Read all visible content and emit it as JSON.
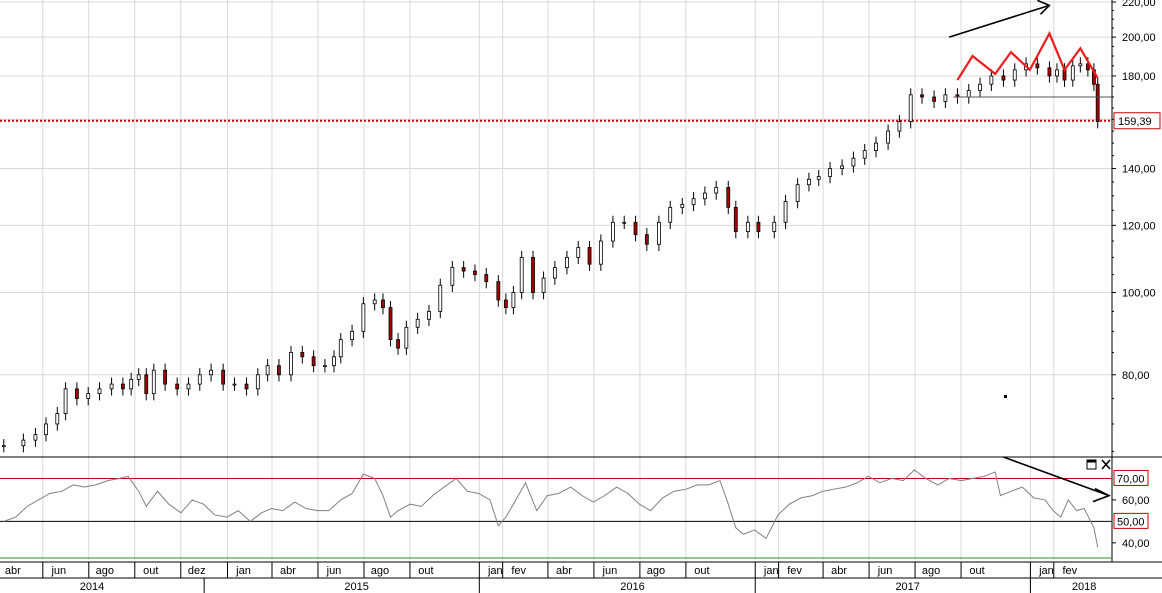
{
  "panel_controls": {
    "maximize_icon": "maximize-icon",
    "close_icon": "close-icon"
  },
  "colors": {
    "up": "#ffffff",
    "down": "#aa0000",
    "wick": "#000000",
    "support_line": "#cc0000",
    "rsi_line": "#808080",
    "rsi_upper": "#cc0000",
    "rsi_mid": "#000000",
    "rsi_lower": "#2e8b2e",
    "pattern": "#ee1c1c",
    "arrow": "#000000",
    "grid": "#d8d8d8"
  },
  "chart_data": [
    {
      "type": "candlestick",
      "scale": "log",
      "ylim": [
        64,
        220
      ],
      "yticks": [
        "80,00",
        "100,00",
        "120,00",
        "140,00",
        "160,00",
        "180,00",
        "200,00",
        "220,00"
      ],
      "ytick_values": [
        80,
        100,
        120,
        140,
        160,
        180,
        200,
        220
      ],
      "last_price_label": "159,39",
      "support_level": 159.39,
      "neckline": {
        "from": "2017-09-01",
        "to": "2018-03-15",
        "value": 170
      },
      "x_start": "2014-03-15",
      "x_end": "2018-03-29",
      "month_labels": [
        "abr",
        "jun",
        "ago",
        "out",
        "dez",
        "jan",
        "abr",
        "jun",
        "ago",
        "out",
        "jan",
        "fev",
        "abr",
        "jun",
        "ago",
        "out",
        "jan",
        "fev",
        "abr",
        "jun",
        "ago",
        "out",
        "jan",
        "fev"
      ],
      "month_label_dates": [
        "2014-04-01",
        "2014-06-01",
        "2014-08-01",
        "2014-10-01",
        "2014-12-01",
        "2015-02-01",
        "2015-04-01",
        "2015-06-01",
        "2015-08-01",
        "2015-10-01",
        "2016-01-01",
        "2016-02-01",
        "2016-04-01",
        "2016-06-01",
        "2016-08-01",
        "2016-10-01",
        "2017-01-01",
        "2017-02-01",
        "2017-04-01",
        "2017-06-01",
        "2017-08-01",
        "2017-10-01",
        "2018-01-01",
        "2018-02-01"
      ],
      "year_labels": [
        "2014",
        "2015",
        "2016",
        "2017",
        "2018"
      ],
      "year_label_dates": [
        "2014-07-15",
        "2015-07-01",
        "2016-07-01",
        "2017-07-01",
        "2018-02-20"
      ],
      "weekly_close": [
        [
          "2014-03-20",
          66
        ],
        [
          "2014-04-15",
          67
        ],
        [
          "2014-05-01",
          68
        ],
        [
          "2014-05-15",
          70
        ],
        [
          "2014-05-30",
          72
        ],
        [
          "2014-06-10",
          77
        ],
        [
          "2014-06-25",
          75
        ],
        [
          "2014-07-10",
          76
        ],
        [
          "2014-07-25",
          77
        ],
        [
          "2014-08-10",
          78
        ],
        [
          "2014-08-25",
          77
        ],
        [
          "2014-09-05",
          79
        ],
        [
          "2014-09-15",
          80
        ],
        [
          "2014-09-25",
          76
        ],
        [
          "2014-10-05",
          81
        ],
        [
          "2014-10-20",
          78
        ],
        [
          "2014-11-05",
          77
        ],
        [
          "2014-11-20",
          78
        ],
        [
          "2014-12-05",
          80
        ],
        [
          "2014-12-20",
          81
        ],
        [
          "2015-01-05",
          78
        ],
        [
          "2015-01-20",
          78
        ],
        [
          "2015-02-05",
          77
        ],
        [
          "2015-02-20",
          80
        ],
        [
          "2015-03-05",
          82
        ],
        [
          "2015-03-20",
          80
        ],
        [
          "2015-04-05",
          85
        ],
        [
          "2015-04-20",
          84
        ],
        [
          "2015-05-05",
          82
        ],
        [
          "2015-05-20",
          82
        ],
        [
          "2015-06-01",
          84
        ],
        [
          "2015-06-10",
          88
        ],
        [
          "2015-06-25",
          90
        ],
        [
          "2015-07-10",
          97
        ],
        [
          "2015-07-25",
          98
        ],
        [
          "2015-08-05",
          96
        ],
        [
          "2015-08-15",
          88
        ],
        [
          "2015-08-25",
          86
        ],
        [
          "2015-09-05",
          91
        ],
        [
          "2015-09-20",
          93
        ],
        [
          "2015-10-05",
          95
        ],
        [
          "2015-10-20",
          102
        ],
        [
          "2015-11-05",
          107
        ],
        [
          "2015-11-20",
          106
        ],
        [
          "2015-12-05",
          105
        ],
        [
          "2015-12-20",
          103
        ],
        [
          "2016-01-05",
          98
        ],
        [
          "2016-01-15",
          96
        ],
        [
          "2016-01-25",
          100
        ],
        [
          "2016-02-05",
          110
        ],
        [
          "2016-02-20",
          100
        ],
        [
          "2016-03-05",
          104
        ],
        [
          "2016-03-20",
          107
        ],
        [
          "2016-04-05",
          110
        ],
        [
          "2016-04-20",
          113
        ],
        [
          "2016-05-05",
          108
        ],
        [
          "2016-05-20",
          115
        ],
        [
          "2016-06-05",
          121
        ],
        [
          "2016-06-20",
          121
        ],
        [
          "2016-07-05",
          117
        ],
        [
          "2016-07-20",
          114
        ],
        [
          "2016-08-05",
          121
        ],
        [
          "2016-08-20",
          126
        ],
        [
          "2016-09-05",
          127
        ],
        [
          "2016-09-20",
          129
        ],
        [
          "2016-10-05",
          131
        ],
        [
          "2016-10-20",
          133
        ],
        [
          "2016-11-05",
          126
        ],
        [
          "2016-11-15",
          118
        ],
        [
          "2016-12-01",
          121
        ],
        [
          "2016-12-15",
          118
        ],
        [
          "2017-01-05",
          121
        ],
        [
          "2017-01-20",
          128
        ],
        [
          "2017-02-05",
          134
        ],
        [
          "2017-02-20",
          136
        ],
        [
          "2017-03-05",
          137
        ],
        [
          "2017-03-20",
          140
        ],
        [
          "2017-04-05",
          141
        ],
        [
          "2017-04-20",
          144
        ],
        [
          "2017-05-05",
          147
        ],
        [
          "2017-05-20",
          150
        ],
        [
          "2017-06-05",
          155
        ],
        [
          "2017-06-20",
          159
        ],
        [
          "2017-07-05",
          171
        ],
        [
          "2017-07-20",
          170
        ],
        [
          "2017-08-05",
          168
        ],
        [
          "2017-08-20",
          171
        ],
        [
          "2017-09-05",
          170
        ],
        [
          "2017-09-20",
          173
        ],
        [
          "2017-10-05",
          176
        ],
        [
          "2017-10-20",
          180
        ],
        [
          "2017-11-05",
          178
        ],
        [
          "2017-11-20",
          183
        ],
        [
          "2017-12-05",
          186
        ],
        [
          "2017-12-20",
          184
        ],
        [
          "2018-01-05",
          180
        ],
        [
          "2018-01-15",
          183
        ],
        [
          "2018-01-25",
          178
        ],
        [
          "2018-02-05",
          185
        ],
        [
          "2018-02-15",
          186
        ],
        [
          "2018-02-25",
          183
        ],
        [
          "2018-03-05",
          176
        ],
        [
          "2018-03-10",
          159
        ]
      ]
    },
    {
      "type": "line",
      "name": "RSI",
      "ylim": [
        32,
        80
      ],
      "yticks": [
        "40,00",
        "60,00"
      ],
      "ytick_values": [
        40,
        60
      ],
      "levels": [
        70,
        50,
        30
      ],
      "level_labels": [
        "70,00",
        "50,00"
      ],
      "series": [
        [
          "2014-03-20",
          50
        ],
        [
          "2014-04-05",
          52
        ],
        [
          "2014-04-20",
          57
        ],
        [
          "2014-05-05",
          60
        ],
        [
          "2014-05-20",
          63
        ],
        [
          "2014-06-05",
          64
        ],
        [
          "2014-06-20",
          67
        ],
        [
          "2014-07-05",
          66
        ],
        [
          "2014-07-20",
          67
        ],
        [
          "2014-08-05",
          69
        ],
        [
          "2014-08-20",
          70
        ],
        [
          "2014-09-01",
          71
        ],
        [
          "2014-09-15",
          64
        ],
        [
          "2014-09-25",
          57
        ],
        [
          "2014-10-10",
          64
        ],
        [
          "2014-10-25",
          58
        ],
        [
          "2014-11-10",
          54
        ],
        [
          "2014-11-25",
          60
        ],
        [
          "2014-12-10",
          58
        ],
        [
          "2014-12-25",
          53
        ],
        [
          "2015-01-10",
          52
        ],
        [
          "2015-01-25",
          55
        ],
        [
          "2015-02-10",
          50
        ],
        [
          "2015-02-25",
          54
        ],
        [
          "2015-03-10",
          56
        ],
        [
          "2015-03-25",
          55
        ],
        [
          "2015-04-10",
          59
        ],
        [
          "2015-04-25",
          56
        ],
        [
          "2015-05-10",
          55
        ],
        [
          "2015-05-25",
          55
        ],
        [
          "2015-06-10",
          60
        ],
        [
          "2015-06-25",
          63
        ],
        [
          "2015-07-10",
          72
        ],
        [
          "2015-07-25",
          70
        ],
        [
          "2015-08-05",
          62
        ],
        [
          "2015-08-15",
          52
        ],
        [
          "2015-08-25",
          55
        ],
        [
          "2015-09-10",
          58
        ],
        [
          "2015-09-25",
          57
        ],
        [
          "2015-10-10",
          62
        ],
        [
          "2015-10-25",
          66
        ],
        [
          "2015-11-10",
          70
        ],
        [
          "2015-11-25",
          64
        ],
        [
          "2015-12-10",
          63
        ],
        [
          "2015-12-25",
          60
        ],
        [
          "2016-01-05",
          48
        ],
        [
          "2016-01-15",
          52
        ],
        [
          "2016-01-25",
          58
        ],
        [
          "2016-02-10",
          68
        ],
        [
          "2016-02-25",
          55
        ],
        [
          "2016-03-10",
          62
        ],
        [
          "2016-03-25",
          63
        ],
        [
          "2016-04-10",
          66
        ],
        [
          "2016-04-25",
          62
        ],
        [
          "2016-05-10",
          59
        ],
        [
          "2016-05-25",
          62
        ],
        [
          "2016-06-10",
          66
        ],
        [
          "2016-06-25",
          63
        ],
        [
          "2016-07-10",
          58
        ],
        [
          "2016-07-25",
          55
        ],
        [
          "2016-08-10",
          61
        ],
        [
          "2016-08-25",
          64
        ],
        [
          "2016-09-10",
          65
        ],
        [
          "2016-09-25",
          67
        ],
        [
          "2016-10-10",
          67
        ],
        [
          "2016-10-25",
          69
        ],
        [
          "2016-11-05",
          58
        ],
        [
          "2016-11-15",
          47
        ],
        [
          "2016-11-25",
          44
        ],
        [
          "2016-12-10",
          46
        ],
        [
          "2016-12-25",
          42
        ],
        [
          "2017-01-10",
          53
        ],
        [
          "2017-01-25",
          58
        ],
        [
          "2017-02-10",
          61
        ],
        [
          "2017-02-25",
          62
        ],
        [
          "2017-03-10",
          64
        ],
        [
          "2017-03-25",
          65
        ],
        [
          "2017-04-10",
          66
        ],
        [
          "2017-04-25",
          68
        ],
        [
          "2017-05-10",
          71
        ],
        [
          "2017-05-25",
          68
        ],
        [
          "2017-06-10",
          70
        ],
        [
          "2017-06-25",
          69
        ],
        [
          "2017-07-10",
          74
        ],
        [
          "2017-07-25",
          70
        ],
        [
          "2017-08-10",
          67
        ],
        [
          "2017-08-25",
          70
        ],
        [
          "2017-09-10",
          69
        ],
        [
          "2017-09-25",
          70
        ],
        [
          "2017-10-10",
          71
        ],
        [
          "2017-10-25",
          73
        ],
        [
          "2017-11-01",
          62
        ],
        [
          "2017-11-15",
          64
        ],
        [
          "2017-11-30",
          66
        ],
        [
          "2017-12-15",
          61
        ],
        [
          "2017-12-30",
          60
        ],
        [
          "2018-01-10",
          55
        ],
        [
          "2018-01-20",
          52
        ],
        [
          "2018-01-30",
          60
        ],
        [
          "2018-02-10",
          55
        ],
        [
          "2018-02-20",
          56
        ],
        [
          "2018-03-05",
          47
        ],
        [
          "2018-03-10",
          38
        ]
      ]
    }
  ]
}
